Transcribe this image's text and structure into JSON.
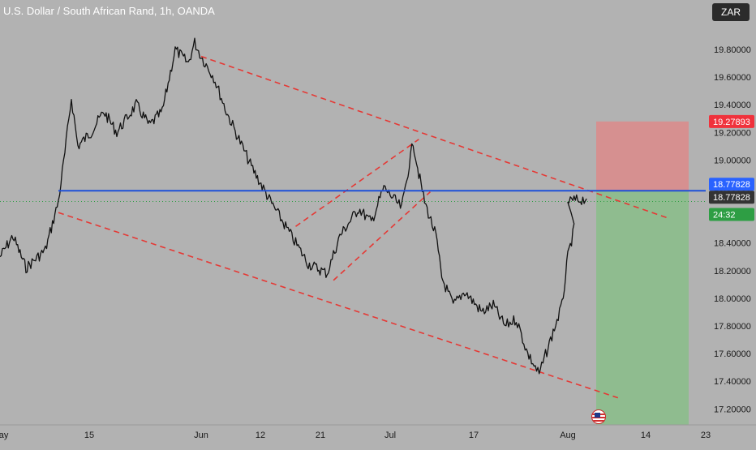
{
  "header": {
    "title": "U.S. Dollar / South African Rand, 1h, OANDA",
    "currency_label": "ZAR"
  },
  "colors": {
    "background": "#b2b2b2",
    "candles": "#111111",
    "trend_lines": "#e53935",
    "horizontal_line": "#1e4fd8",
    "stop_zone": "#d98c8c",
    "target_zone": "#8bbd8b",
    "label_red": "#f0323c",
    "label_blue": "#2962ff",
    "label_dark": "#333333",
    "label_green": "#2e9e44"
  },
  "chart_data": {
    "type": "line",
    "y_axis": {
      "ticks": [
        "19.80000",
        "19.60000",
        "19.40000",
        "19.20000",
        "19.00000",
        "18.80000",
        "18.60000",
        "18.40000",
        "18.20000",
        "18.00000",
        "17.80000",
        "17.60000",
        "17.40000",
        "17.20000"
      ],
      "range": [
        17.16,
        19.98
      ]
    },
    "x_axis": {
      "ticks": [
        "May",
        "15",
        "Jun",
        "12",
        "21",
        "Jul",
        "17",
        "Aug",
        "14",
        "23"
      ]
    },
    "price_labels": [
      {
        "text": "19.27893",
        "value": 19.27893,
        "style": "red"
      },
      {
        "text": "18.77828",
        "value": 18.77828,
        "style": "blue"
      },
      {
        "text": "18.77828",
        "value": 18.77828,
        "style": "dark"
      },
      {
        "text": "24:32",
        "value": 18.7,
        "style": "green"
      }
    ],
    "horizontal_line": 18.77828,
    "position_tool": {
      "entry": 18.77828,
      "stop": 19.27893,
      "target": 17.16
    },
    "price_series": [
      [
        "May",
        18.3
      ],
      [
        "May 3",
        18.45
      ],
      [
        "May 5",
        18.22
      ],
      [
        "May 8",
        18.35
      ],
      [
        "May 10",
        18.7
      ],
      [
        "May 11",
        19.05
      ],
      [
        "May 12",
        19.45
      ],
      [
        "May 13",
        19.1
      ],
      [
        "May 15",
        19.2
      ],
      [
        "May 17",
        19.35
      ],
      [
        "May 19",
        19.2
      ],
      [
        "May 22",
        19.4
      ],
      [
        "May 24",
        19.25
      ],
      [
        "May 26",
        19.35
      ],
      [
        "May 28",
        19.8
      ],
      [
        "May 30",
        19.7
      ],
      [
        "May 31",
        19.85
      ],
      [
        "Jun",
        19.75
      ],
      [
        "Jun 3",
        19.6
      ],
      [
        "Jun 5",
        19.35
      ],
      [
        "Jun 7",
        19.15
      ],
      [
        "Jun 9",
        18.95
      ],
      [
        "Jun 12",
        18.7
      ],
      [
        "Jun 14",
        18.55
      ],
      [
        "Jun 16",
        18.4
      ],
      [
        "Jun 18",
        18.25
      ],
      [
        "Jun 21",
        18.18
      ],
      [
        "Jun 23",
        18.45
      ],
      [
        "Jun 26",
        18.65
      ],
      [
        "Jun 28",
        18.55
      ],
      [
        "Jun 30",
        18.8
      ],
      [
        "Jul",
        18.75
      ],
      [
        "Jul 3",
        18.65
      ],
      [
        "Jul 5",
        19.13
      ],
      [
        "Jul 6",
        18.9
      ],
      [
        "Jul 7",
        18.7
      ],
      [
        "Jul 9",
        18.45
      ],
      [
        "Jul 10",
        18.15
      ],
      [
        "Jul 12",
        17.95
      ],
      [
        "Jul 14",
        18.05
      ],
      [
        "Jul 17",
        17.9
      ],
      [
        "Jul 19",
        17.95
      ],
      [
        "Jul 21",
        17.8
      ],
      [
        "Jul 23",
        17.85
      ],
      [
        "Jul 25",
        17.6
      ],
      [
        "Jul 27",
        17.45
      ],
      [
        "Jul 29",
        17.7
      ],
      [
        "Jul 31",
        17.95
      ],
      [
        "Aug 1",
        18.3
      ],
      [
        "Aug 2",
        18.5
      ],
      [
        "Aug",
        18.7
      ],
      [
        "Aug 4",
        18.72
      ]
    ],
    "trend_lines": [
      {
        "from": [
          "Jun",
          19.75
        ],
        "to": [
          "Aug 17",
          18.58
        ]
      },
      {
        "from": [
          "May 10",
          18.62
        ],
        "to": [
          "Aug 9",
          17.28
        ]
      },
      {
        "from": [
          "Jun 16",
          18.52
        ],
        "to": [
          "Jul 6",
          19.15
        ]
      },
      {
        "from": [
          "Jun 22",
          18.13
        ],
        "to": [
          "Jul 8",
          18.77
        ]
      }
    ]
  }
}
